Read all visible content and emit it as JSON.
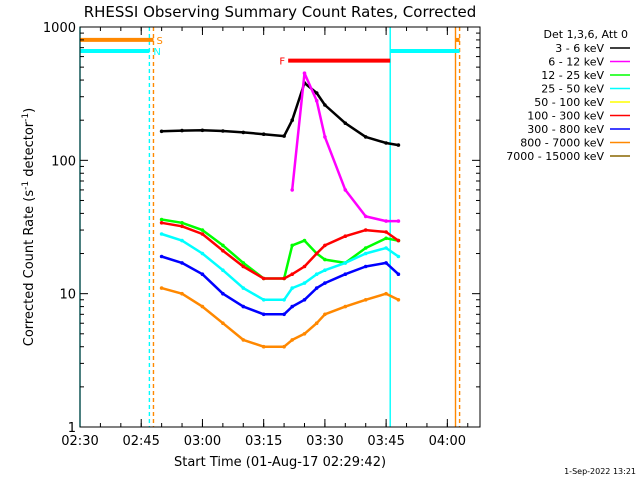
{
  "colors": {
    "background": "#ffffff",
    "axes": "#000000",
    "cyan": "#00ffff",
    "orange": "#ff8800",
    "red": "#ff0000"
  },
  "chart_data": {
    "type": "line",
    "title": "RHESSI Observing Summary Count Rates, Corrected",
    "xlabel": "Start Time (01-Aug-17 02:29:42)",
    "ylabel": "Corrected Count Rate (s⁻¹ detector⁻¹)",
    "ylabel_parts": [
      "Corrected Count Rate (s",
      "-1",
      " detector",
      "-1",
      ")"
    ],
    "yscale": "log",
    "ylim": [
      1,
      1000
    ],
    "xlim": [
      "02:30",
      "04:08"
    ],
    "x_ticks": [
      "02:30",
      "02:45",
      "03:00",
      "03:15",
      "03:30",
      "03:45",
      "04:00"
    ],
    "y_ticks": [
      {
        "value": 1,
        "label": "1"
      },
      {
        "value": 10,
        "label": "10"
      },
      {
        "value": 100,
        "label": "100"
      },
      {
        "value": 1000,
        "label": "1000"
      }
    ],
    "x": [
      "02:50",
      "02:55",
      "03:00",
      "03:05",
      "03:10",
      "03:15",
      "03:20",
      "03:22",
      "03:25",
      "03:28",
      "03:30",
      "03:35",
      "03:40",
      "03:45",
      "03:48"
    ],
    "legend_header": "Det 1,3,6, Att 0",
    "legend_position": "right",
    "series": [
      {
        "name": "3 - 6 keV",
        "color": "#000000",
        "values": [
          165,
          167,
          168,
          166,
          162,
          157,
          152,
          200,
          380,
          320,
          260,
          190,
          150,
          135,
          130
        ]
      },
      {
        "name": "6 - 12 keV",
        "color": "#ff00ff",
        "values": [
          null,
          null,
          null,
          null,
          null,
          null,
          null,
          60,
          450,
          280,
          150,
          60,
          38,
          35,
          35
        ]
      },
      {
        "name": "12 - 25 keV",
        "color": "#00ff00",
        "values": [
          36,
          34,
          30,
          23,
          17,
          13,
          13,
          23,
          25,
          20,
          18,
          17,
          22,
          26,
          25
        ]
      },
      {
        "name": "25 - 50 keV",
        "color": "#00ffff",
        "values": [
          28,
          25,
          20,
          15,
          11,
          9,
          9,
          11,
          12,
          14,
          15,
          17,
          20,
          22,
          19
        ]
      },
      {
        "name": "50 - 100 keV",
        "color": "#ffff00",
        "values": [
          null,
          null,
          null,
          null,
          null,
          null,
          null,
          null,
          null,
          null,
          null,
          null,
          null,
          null,
          null
        ]
      },
      {
        "name": "100 - 300 keV",
        "color": "#ff0000",
        "values": [
          34,
          32,
          28,
          21,
          16,
          13,
          13,
          14,
          16,
          20,
          23,
          27,
          30,
          29,
          25
        ]
      },
      {
        "name": "300 - 800 keV",
        "color": "#0000ff",
        "values": [
          19,
          17,
          14,
          10,
          8,
          7,
          7,
          8,
          9,
          11,
          12,
          14,
          16,
          17,
          14
        ]
      },
      {
        "name": "800 - 7000 keV",
        "color": "#ff8800",
        "values": [
          11,
          10,
          8,
          6,
          4.5,
          4,
          4,
          4.5,
          5,
          6,
          7,
          8,
          9,
          10,
          9
        ]
      },
      {
        "name": "7000 - 15000 keV",
        "color": "#886600",
        "values": [
          null,
          null,
          null,
          null,
          null,
          null,
          null,
          null,
          null,
          null,
          null,
          null,
          null,
          null,
          null
        ]
      }
    ],
    "annotations": {
      "saa": {
        "label": "S",
        "start": "02:30",
        "end": "02:48",
        "level": 800,
        "color": "#ff8800"
      },
      "night": {
        "label": "N",
        "start": "02:30",
        "end": "02:47",
        "level": 660,
        "color": "#00ffff"
      },
      "flare": {
        "label": "F",
        "start": "03:21",
        "end": "03:46",
        "level": 560,
        "color": "#ff0000"
      },
      "night_right": {
        "start": "03:46",
        "end": "04:03",
        "level": 660
      },
      "saa_right": {
        "start": "04:02",
        "end": "04:03",
        "level": 800
      },
      "vlines": [
        {
          "x": "02:30",
          "color": "#00ffff",
          "style": "solid"
        },
        {
          "x": "02:47",
          "color": "#00ffff",
          "style": "dashed"
        },
        {
          "x": "02:48",
          "color": "#ff8800",
          "style": "dashed"
        },
        {
          "x": "03:46",
          "color": "#00ffff",
          "style": "solid"
        },
        {
          "x": "04:02",
          "color": "#ff8800",
          "style": "solid"
        },
        {
          "x": "04:03",
          "color": "#ff8800",
          "style": "dashed"
        }
      ]
    },
    "timestamp": "1-Sep-2022 13:21"
  }
}
